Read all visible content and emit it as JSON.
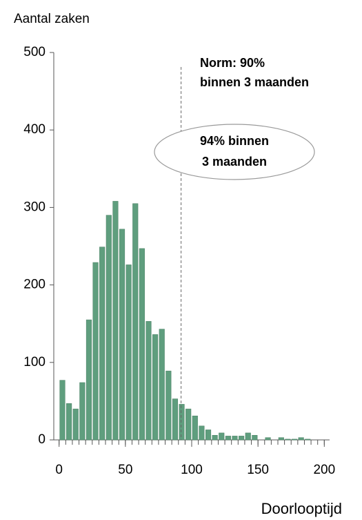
{
  "chart_data": {
    "type": "histogram",
    "ylabel": "Aantal zaken",
    "xlabel": "Doorlooptijd",
    "bins": [
      0,
      5,
      10,
      15,
      20,
      25,
      30,
      35,
      40,
      45,
      50,
      55,
      60,
      65,
      70,
      75,
      80,
      85,
      90,
      95,
      100,
      105,
      110,
      115,
      120,
      125,
      130,
      135,
      140,
      145,
      150,
      155,
      160,
      165,
      170,
      175,
      180,
      185,
      190,
      195,
      200
    ],
    "values": [
      77,
      47,
      40,
      74,
      155,
      229,
      249,
      290,
      308,
      272,
      226,
      305,
      247,
      153,
      136,
      143,
      89,
      53,
      46,
      40,
      31,
      18,
      13,
      6,
      9,
      5,
      5,
      5,
      9,
      6,
      0,
      3,
      0,
      3,
      1,
      1,
      3,
      1,
      0,
      0
    ],
    "color": "#5f9e7e",
    "xlim": [
      -4,
      204
    ],
    "ylim": [
      0,
      500
    ],
    "xticks": [
      0,
      50,
      100,
      150,
      200
    ],
    "yticks": [
      0,
      100,
      200,
      300,
      400,
      500
    ],
    "norm_x": 92,
    "norm_label": [
      "Norm: 90%",
      "binnen 3 maanden"
    ],
    "callout": [
      "94% binnen",
      "3 maanden"
    ]
  }
}
